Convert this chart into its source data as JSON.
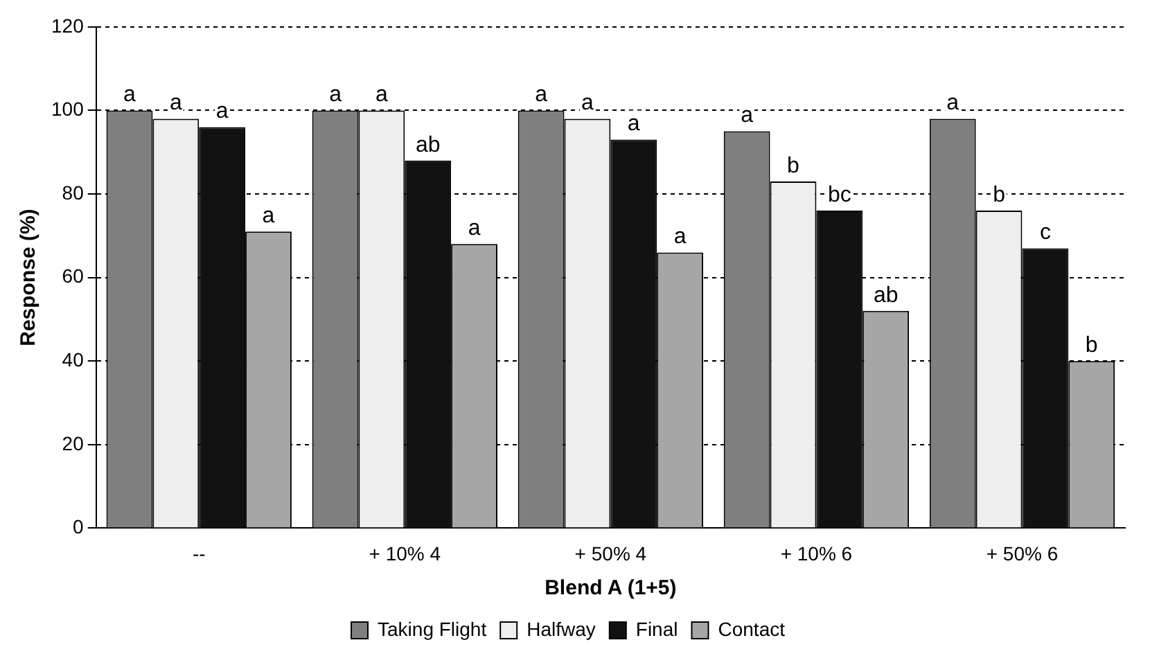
{
  "chart_data": {
    "type": "bar",
    "xlabel": "Blend A (1+5)",
    "ylabel": "Response (%)",
    "categories": [
      "--",
      "+ 10% 4",
      "+ 50% 4",
      "+ 10% 6",
      "+ 50% 6"
    ],
    "series": [
      {
        "name": "Taking Flight",
        "color": "#7f7f7f",
        "values": [
          100,
          100,
          100,
          95,
          98
        ],
        "value_labels": [
          "a",
          "a",
          "a",
          "a",
          "a"
        ]
      },
      {
        "name": "Halfway",
        "color": "#eeeeee",
        "values": [
          98,
          100,
          98,
          83,
          76
        ],
        "value_labels": [
          "a",
          "a",
          "a",
          "b",
          "b"
        ]
      },
      {
        "name": "Final",
        "color": "#111111",
        "values": [
          96,
          88,
          93,
          76,
          67
        ],
        "value_labels": [
          "a",
          "ab",
          "a",
          "bc",
          "c"
        ]
      },
      {
        "name": "Contact",
        "color": "#a6a6a6",
        "values": [
          71,
          68,
          66,
          52,
          40
        ],
        "value_labels": [
          "a",
          "a",
          "a",
          "ab",
          "b"
        ]
      }
    ],
    "ylim": [
      0,
      120
    ],
    "yticks": [
      0,
      20,
      40,
      60,
      80,
      100,
      120
    ],
    "grid": "y",
    "legend": "bottom"
  }
}
